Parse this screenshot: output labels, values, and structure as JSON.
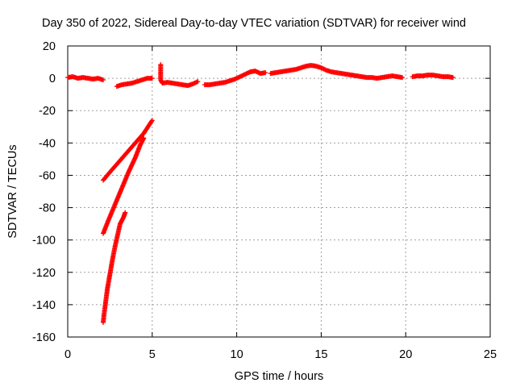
{
  "chart_data": {
    "type": "scatter",
    "title": "Day 350 of 2022, Sidereal Day-to-day VTEC variation (SDTVAR) for receiver wind",
    "xlabel": "GPS time / hours",
    "ylabel": "SDTVAR / TECUs",
    "xlim": [
      0,
      25
    ],
    "ylim": [
      -160,
      20
    ],
    "xticks": [
      "0",
      "5",
      "10",
      "15",
      "20",
      "25"
    ],
    "yticks": [
      "20",
      "0",
      "-20",
      "-40",
      "-60",
      "-80",
      "-100",
      "-120",
      "-140",
      "-160"
    ],
    "grid": true,
    "marker": "+",
    "color": "#ff0000",
    "series": [
      {
        "segments": [
          [
            [
              0.0,
              0.5
            ],
            [
              0.3,
              1.0
            ],
            [
              0.6,
              0.0
            ],
            [
              0.9,
              0.5
            ],
            [
              1.2,
              0.0
            ],
            [
              1.5,
              -0.5
            ],
            [
              1.8,
              0.0
            ],
            [
              2.1,
              -1.0
            ]
          ],
          [
            [
              2.9,
              -5.0
            ],
            [
              3.2,
              -4.0
            ],
            [
              3.5,
              -3.5
            ],
            [
              3.8,
              -3.0
            ],
            [
              4.1,
              -2.0
            ],
            [
              4.4,
              -1.0
            ],
            [
              4.7,
              0.0
            ],
            [
              5.0,
              0.0
            ]
          ],
          [
            [
              5.5,
              8.5
            ],
            [
              5.5,
              -1.0
            ],
            [
              5.6,
              -3.0
            ],
            [
              5.9,
              -2.5
            ],
            [
              6.2,
              -3.0
            ],
            [
              6.5,
              -3.5
            ],
            [
              6.8,
              -4.0
            ],
            [
              7.1,
              -4.5
            ],
            [
              7.4,
              -3.5
            ],
            [
              7.7,
              -2.0
            ]
          ],
          [
            [
              8.1,
              -4.0
            ],
            [
              8.4,
              -4.0
            ],
            [
              8.7,
              -3.5
            ],
            [
              9.0,
              -3.0
            ],
            [
              9.3,
              -2.5
            ],
            [
              9.6,
              -1.5
            ],
            [
              9.9,
              -0.5
            ],
            [
              10.2,
              1.0
            ],
            [
              10.5,
              2.5
            ],
            [
              10.8,
              4.0
            ],
            [
              11.1,
              4.5
            ],
            [
              11.4,
              3.0
            ],
            [
              11.7,
              3.5
            ]
          ],
          [
            [
              12.0,
              3.0
            ],
            [
              12.3,
              3.5
            ],
            [
              12.6,
              4.0
            ],
            [
              12.9,
              4.5
            ],
            [
              13.2,
              5.0
            ],
            [
              13.5,
              5.5
            ],
            [
              13.8,
              6.5
            ],
            [
              14.1,
              7.5
            ],
            [
              14.4,
              8.0
            ],
            [
              14.7,
              7.5
            ],
            [
              15.0,
              6.5
            ],
            [
              15.3,
              5.0
            ],
            [
              15.6,
              4.0
            ],
            [
              15.9,
              3.5
            ],
            [
              16.2,
              3.0
            ],
            [
              16.5,
              2.5
            ],
            [
              16.8,
              2.0
            ],
            [
              17.1,
              1.5
            ],
            [
              17.4,
              1.0
            ],
            [
              17.7,
              0.5
            ],
            [
              18.0,
              0.5
            ],
            [
              18.3,
              0.0
            ],
            [
              18.6,
              0.5
            ],
            [
              18.9,
              1.0
            ],
            [
              19.2,
              1.5
            ],
            [
              19.5,
              1.0
            ],
            [
              19.8,
              0.5
            ]
          ],
          [
            [
              20.4,
              1.0
            ],
            [
              20.7,
              1.5
            ],
            [
              21.0,
              1.5
            ],
            [
              21.3,
              2.0
            ],
            [
              21.6,
              2.0
            ],
            [
              21.9,
              1.5
            ],
            [
              22.2,
              1.0
            ],
            [
              22.5,
              1.0
            ],
            [
              22.8,
              0.5
            ]
          ],
          [
            [
              2.1,
              -63
            ],
            [
              2.5,
              -58
            ],
            [
              3.0,
              -52
            ],
            [
              3.5,
              -46
            ],
            [
              4.0,
              -40
            ],
            [
              4.5,
              -34
            ],
            [
              5.0,
              -26
            ]
          ],
          [
            [
              2.1,
              -96
            ],
            [
              2.4,
              -88
            ],
            [
              2.8,
              -78
            ],
            [
              3.2,
              -68
            ],
            [
              3.6,
              -58
            ],
            [
              4.0,
              -49
            ],
            [
              4.3,
              -41
            ],
            [
              4.5,
              -37
            ]
          ],
          [
            [
              2.1,
              -151
            ],
            [
              2.15,
              -146
            ],
            [
              2.25,
              -138
            ],
            [
              2.35,
              -130
            ],
            [
              2.5,
              -121
            ],
            [
              2.65,
              -112
            ],
            [
              2.8,
              -104
            ],
            [
              2.95,
              -97
            ],
            [
              3.1,
              -90
            ],
            [
              3.3,
              -86
            ],
            [
              3.4,
              -83
            ]
          ]
        ]
      }
    ]
  }
}
